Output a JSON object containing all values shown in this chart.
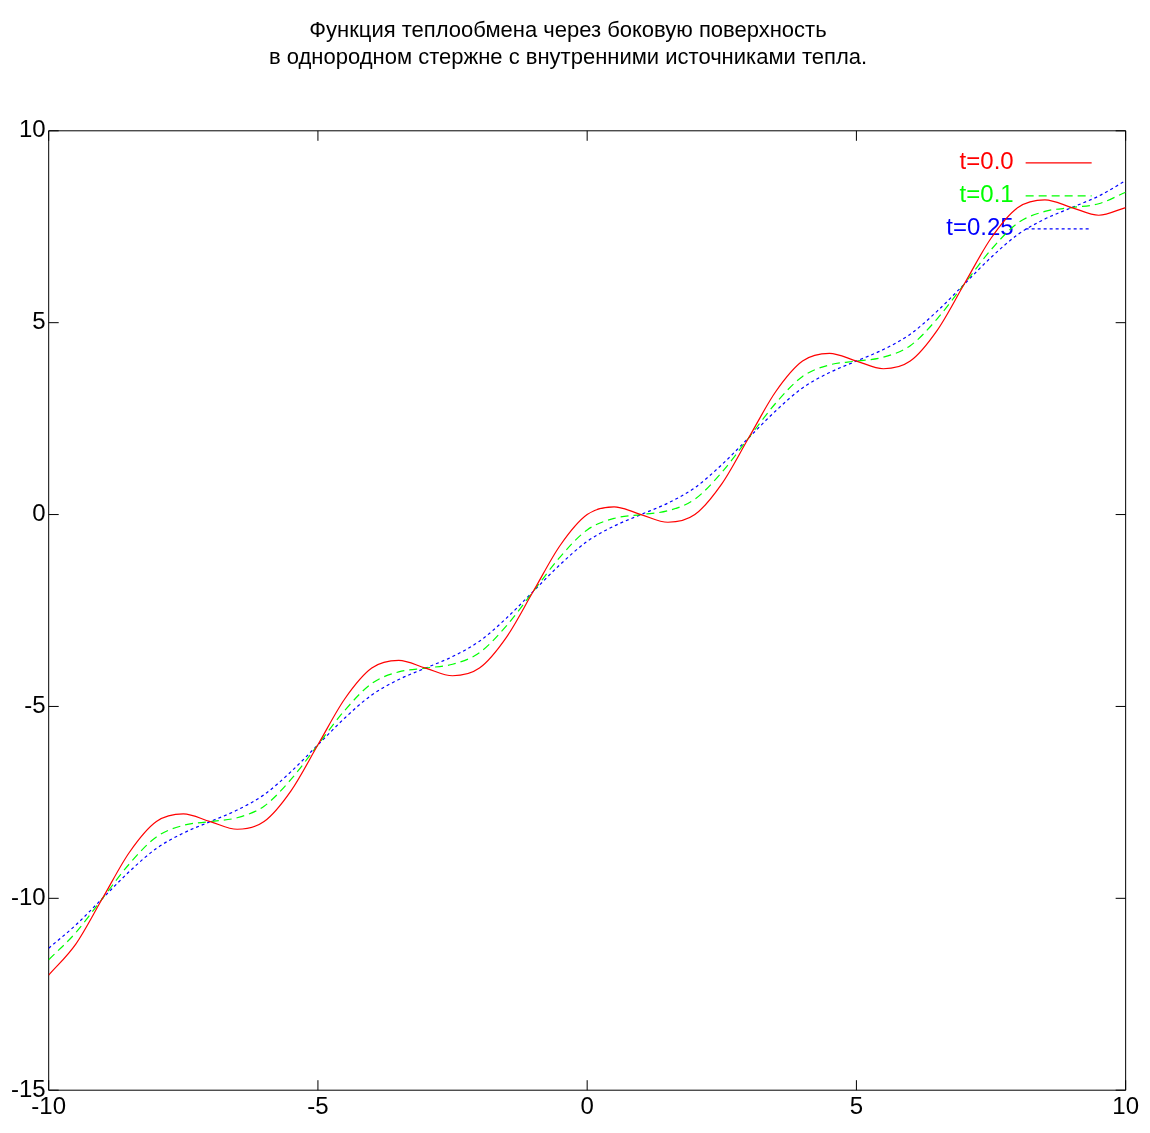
{
  "chart_data": {
    "type": "line",
    "title": "Функция теплообмена через боковую поверхность\nв однородном стержне с внутренними источниками тепла.",
    "x": [
      -10,
      -9.5,
      -9,
      -8.5,
      -8,
      -7.5,
      -7,
      -6.5,
      -6,
      -5.5,
      -5,
      -4.5,
      -4,
      -3.5,
      -3,
      -2.5,
      -2,
      -1.5,
      -1,
      -0.5,
      0,
      0.5,
      1,
      1.5,
      2,
      2.5,
      3,
      3.5,
      4,
      4.5,
      5,
      5.5,
      6,
      6.5,
      7,
      7.5,
      8,
      8.5,
      9,
      9.5,
      10
    ],
    "series": [
      {
        "name": "t=0.0",
        "color": "#ff0000",
        "line_style": "solid",
        "values": [
          -12,
          -11.2,
          -10,
          -8.8,
          -8,
          -7.8,
          -8,
          -8.2,
          -8,
          -7.2,
          -6,
          -4.8,
          -4,
          -3.8,
          -4,
          -4.2,
          -4,
          -3.2,
          -2,
          -0.8,
          0,
          0.2,
          0,
          -0.2,
          0,
          0.8,
          2,
          3.2,
          4,
          4.2,
          4,
          3.8,
          4,
          4.8,
          6,
          7.2,
          8,
          8.2,
          8,
          7.8,
          8
        ]
      },
      {
        "name": "t=0.1",
        "color": "#00ff00",
        "line_style": "dashed",
        "values": [
          -11.6,
          -10.9,
          -10,
          -9.1,
          -8.4,
          -8.1,
          -8,
          -7.9,
          -7.6,
          -6.9,
          -6,
          -5.1,
          -4.4,
          -4.1,
          -4,
          -3.9,
          -3.6,
          -2.9,
          -2,
          -1.1,
          -0.4,
          -0.1,
          0,
          0.1,
          0.4,
          1.1,
          2,
          2.9,
          3.6,
          3.9,
          4,
          4.1,
          4.4,
          5.1,
          6,
          6.9,
          7.6,
          7.9,
          8,
          8.1,
          8.4
        ]
      },
      {
        "name": "t=0.25",
        "color": "#0000ff",
        "line_style": "dotted",
        "values": [
          -11.3,
          -10.7,
          -10,
          -9.3,
          -8.7,
          -8.3,
          -8,
          -7.7,
          -7.3,
          -6.7,
          -6,
          -5.3,
          -4.7,
          -4.3,
          -4,
          -3.7,
          -3.3,
          -2.7,
          -2,
          -1.3,
          -0.7,
          -0.3,
          0,
          0.3,
          0.7,
          1.3,
          2,
          2.7,
          3.3,
          3.7,
          4,
          4.3,
          4.7,
          5.3,
          6,
          6.7,
          7.3,
          7.7,
          8,
          8.3,
          8.7
        ]
      }
    ],
    "xlim": [
      -10,
      10
    ],
    "xticks": [
      -10,
      -5,
      0,
      5,
      10
    ],
    "ylim": [
      -15,
      10
    ],
    "yticks": [
      -15,
      -10,
      -5,
      0,
      5,
      10
    ],
    "legend": "top right",
    "marker": "none"
  }
}
